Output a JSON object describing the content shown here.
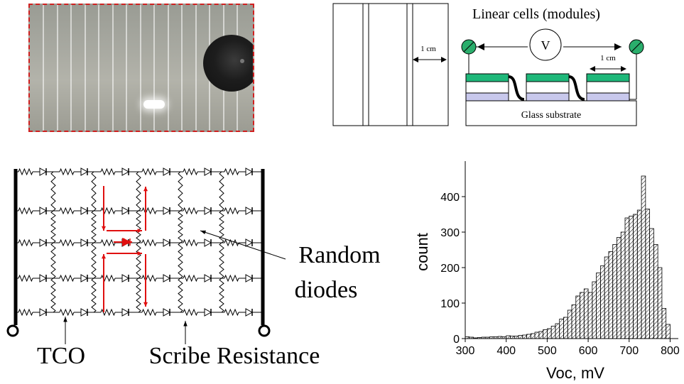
{
  "module_diagram": {
    "title": "Linear cells (modules)",
    "voltmeter": "V",
    "width_label_left": "1 cm",
    "width_label_right": "1 cm",
    "substrate_label": "Glass substrate"
  },
  "network_diagram": {
    "label_random": "Random",
    "label_diodes": "diodes",
    "label_tco": "TCO",
    "label_scribe": "Scribe Resistance"
  },
  "chart_data": {
    "type": "bar",
    "xlabel": "Voc, mV",
    "ylabel": "count",
    "xlim": [
      300,
      800
    ],
    "ylim": [
      0,
      480
    ],
    "xticks": [
      300,
      400,
      500,
      600,
      700,
      800
    ],
    "yticks": [
      0,
      100,
      200,
      300,
      400
    ],
    "bin_width": 10,
    "x": [
      300,
      310,
      320,
      330,
      340,
      350,
      360,
      370,
      380,
      390,
      400,
      410,
      420,
      430,
      440,
      450,
      460,
      470,
      480,
      490,
      500,
      510,
      520,
      530,
      540,
      550,
      560,
      570,
      580,
      590,
      600,
      610,
      620,
      630,
      640,
      650,
      660,
      670,
      680,
      690,
      700,
      710,
      720,
      730,
      740,
      750,
      760,
      770,
      780,
      790
    ],
    "values": [
      5,
      4,
      2,
      3,
      4,
      4,
      5,
      5,
      6,
      5,
      8,
      7,
      7,
      9,
      10,
      12,
      14,
      18,
      20,
      25,
      28,
      35,
      42,
      55,
      60,
      80,
      95,
      120,
      130,
      140,
      130,
      160,
      185,
      205,
      230,
      245,
      265,
      285,
      300,
      340,
      345,
      350,
      362,
      458,
      365,
      310,
      265,
      200,
      85,
      40
    ]
  }
}
